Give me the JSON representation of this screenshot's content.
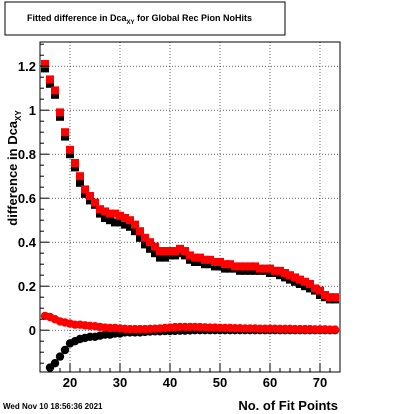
{
  "chart_data": {
    "type": "scatter",
    "title": "Fitted difference in Dca",
    "title_subscript": "XY",
    "title_suffix": " for Global Rec Pion NoHits",
    "xlabel": "No. of Fit Points",
    "ylabel": "difference in Dca",
    "ylabel_subscript": "XY",
    "xlim": [
      14,
      74
    ],
    "ylim": [
      -0.19,
      1.31
    ],
    "xticks": [
      20,
      30,
      40,
      50,
      60,
      70
    ],
    "yticks": [
      0,
      0.2,
      0.4,
      0.6,
      0.8,
      1,
      1.2
    ],
    "xtick_labels": [
      "20",
      "30",
      "40",
      "50",
      "60",
      "70"
    ],
    "ytick_labels": [
      "0",
      "0.2",
      "0.4",
      "0.6",
      "0.8",
      "1",
      "1.2"
    ],
    "grid": true,
    "series": [
      {
        "marker": "square",
        "color": "#000000",
        "x": [
          15,
          16,
          17,
          18,
          19,
          20,
          21,
          22,
          23,
          24,
          25,
          26,
          27,
          28,
          29,
          30,
          31,
          32,
          33,
          34,
          35,
          36,
          37,
          38,
          39,
          40,
          41,
          42,
          43,
          44,
          45,
          46,
          47,
          48,
          49,
          50,
          51,
          52,
          53,
          54,
          55,
          56,
          57,
          58,
          59,
          60,
          61,
          62,
          63,
          64,
          65,
          66,
          67,
          68,
          69,
          70,
          71,
          72,
          73
        ],
        "y": [
          1.19,
          1.12,
          1.07,
          0.97,
          0.88,
          0.8,
          0.74,
          0.67,
          0.62,
          0.59,
          0.57,
          0.53,
          0.51,
          0.5,
          0.49,
          0.49,
          0.48,
          0.47,
          0.45,
          0.42,
          0.39,
          0.37,
          0.35,
          0.33,
          0.33,
          0.34,
          0.34,
          0.35,
          0.34,
          0.32,
          0.31,
          0.31,
          0.3,
          0.3,
          0.29,
          0.29,
          0.28,
          0.28,
          0.28,
          0.27,
          0.27,
          0.27,
          0.27,
          0.27,
          0.27,
          0.26,
          0.26,
          0.25,
          0.24,
          0.23,
          0.22,
          0.21,
          0.2,
          0.19,
          0.18,
          0.16,
          0.15,
          0.14,
          0.14
        ]
      },
      {
        "marker": "square",
        "color": "#ff0000",
        "x": [
          15,
          16,
          17,
          18,
          19,
          20,
          21,
          22,
          23,
          24,
          25,
          26,
          27,
          28,
          29,
          30,
          31,
          32,
          33,
          34,
          35,
          36,
          37,
          38,
          39,
          40,
          41,
          42,
          43,
          44,
          45,
          46,
          47,
          48,
          49,
          50,
          51,
          52,
          53,
          54,
          55,
          56,
          57,
          58,
          59,
          60,
          61,
          62,
          63,
          64,
          65,
          66,
          67,
          68,
          69,
          70,
          71,
          72,
          73
        ],
        "y": [
          1.21,
          1.14,
          1.09,
          0.99,
          0.9,
          0.82,
          0.76,
          0.7,
          0.64,
          0.61,
          0.58,
          0.55,
          0.54,
          0.53,
          0.53,
          0.52,
          0.51,
          0.5,
          0.48,
          0.45,
          0.42,
          0.4,
          0.38,
          0.36,
          0.36,
          0.36,
          0.36,
          0.37,
          0.36,
          0.34,
          0.33,
          0.33,
          0.32,
          0.32,
          0.31,
          0.31,
          0.3,
          0.3,
          0.29,
          0.29,
          0.29,
          0.29,
          0.29,
          0.28,
          0.28,
          0.28,
          0.27,
          0.27,
          0.26,
          0.25,
          0.24,
          0.23,
          0.22,
          0.21,
          0.19,
          0.18,
          0.16,
          0.15,
          0.15
        ]
      },
      {
        "marker": "circle",
        "color": "#000000",
        "x": [
          16,
          17,
          18,
          19,
          20,
          21,
          22,
          23,
          24,
          25,
          26,
          27,
          28,
          29,
          30,
          31,
          32,
          33,
          34,
          35,
          36,
          37,
          38,
          39,
          40,
          41,
          42,
          43,
          44,
          45,
          46,
          47,
          48,
          49,
          50,
          51,
          52,
          53,
          54,
          55,
          56,
          57,
          58,
          59,
          60,
          61,
          62,
          63,
          64,
          65,
          66,
          67,
          68,
          69,
          70,
          71,
          72,
          73
        ],
        "y": [
          -0.17,
          -0.15,
          -0.12,
          -0.09,
          -0.06,
          -0.05,
          -0.04,
          -0.035,
          -0.03,
          -0.03,
          -0.025,
          -0.02,
          -0.02,
          -0.015,
          -0.015,
          -0.01,
          -0.01,
          -0.01,
          -0.01,
          -0.008,
          -0.006,
          -0.005,
          -0.005,
          -0.004,
          -0.004,
          -0.003,
          -0.002,
          -0.002,
          -0.001,
          0,
          0,
          0,
          0,
          0,
          0,
          0,
          0,
          0,
          0,
          0,
          0,
          0,
          0,
          0,
          0,
          0,
          0,
          0,
          0,
          0,
          0,
          0,
          0,
          0,
          0,
          0,
          0,
          0
        ]
      },
      {
        "marker": "circle",
        "color": "#ff0000",
        "x": [
          15,
          16,
          17,
          18,
          19,
          20,
          21,
          22,
          23,
          24,
          25,
          26,
          27,
          28,
          29,
          30,
          31,
          32,
          33,
          34,
          35,
          36,
          37,
          38,
          39,
          40,
          41,
          42,
          43,
          44,
          45,
          46,
          47,
          48,
          49,
          50,
          51,
          52,
          53,
          54,
          55,
          56,
          57,
          58,
          59,
          60,
          61,
          62,
          63,
          64,
          65,
          66,
          67,
          68,
          69,
          70,
          71,
          72,
          73
        ],
        "y": [
          0.065,
          0.06,
          0.05,
          0.04,
          0.035,
          0.03,
          0.025,
          0.025,
          0.022,
          0.02,
          0.018,
          0.015,
          0.012,
          0.01,
          0.01,
          0.008,
          0.006,
          0.005,
          0.005,
          0.005,
          0.005,
          0.006,
          0.007,
          0.008,
          0.01,
          0.012,
          0.014,
          0.015,
          0.015,
          0.015,
          0.015,
          0.014,
          0.013,
          0.012,
          0.012,
          0.011,
          0.01,
          0.01,
          0.009,
          0.009,
          0.008,
          0.008,
          0.008,
          0.007,
          0.007,
          0.007,
          0.007,
          0.006,
          0.006,
          0.006,
          0.005,
          0.005,
          0.005,
          0.005,
          0.004,
          0.004,
          0.004,
          0.003,
          0.003
        ]
      }
    ]
  },
  "footer": {
    "timestamp": "Wed Nov 10 18:56:36 2021"
  }
}
